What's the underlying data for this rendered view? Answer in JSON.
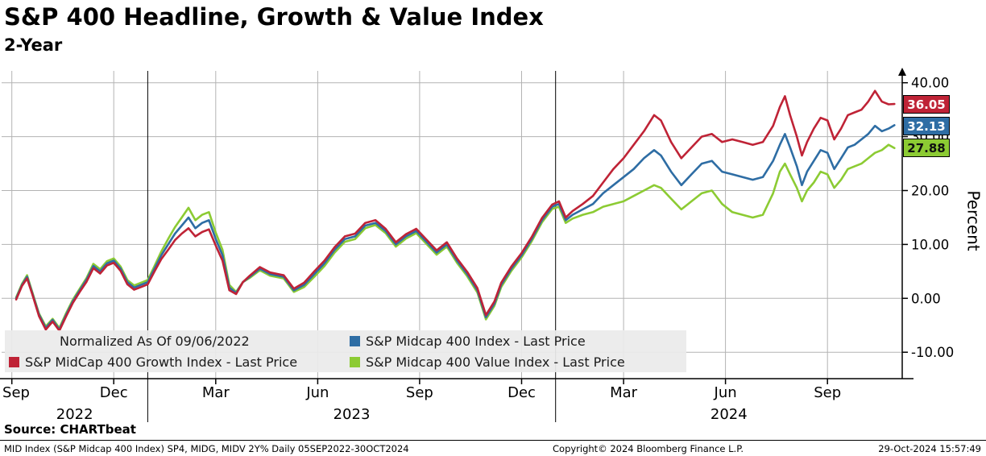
{
  "header": {
    "title": "S&P 400 Headline, Growth & Value Index",
    "subtitle": "2-Year"
  },
  "colors": {
    "red": "#bf2336",
    "blue": "#2e6da4",
    "green": "#8ccb33",
    "grid": "#b3b3b3",
    "axis": "#000000",
    "legend_bg": "#ebebeb"
  },
  "legend": {
    "normalized": "Normalized As Of 09/06/2022",
    "items": [
      {
        "key": "blue",
        "label": "S&P Midcap 400 Index - Last Price"
      },
      {
        "key": "red",
        "label": "S&P MidCap 400 Growth Index - Last Price"
      },
      {
        "key": "green",
        "label": "S&P Midcap 400 Value Index - Last Price"
      }
    ]
  },
  "axis": {
    "percent_label": "Percent"
  },
  "badges": [
    {
      "key": "red",
      "label": "36.05"
    },
    {
      "key": "blue",
      "label": "32.13"
    },
    {
      "key": "green",
      "label": "27.88"
    }
  ],
  "footer": {
    "source": "Source: CHARTbeat",
    "left": "MID Index (S&P Midcap 400 Index) SP4, MIDG, MIDV 2Y%  Daily 05SEP2022-30OCT2024",
    "copyright": "Copyright© 2024 Bloomberg Finance L.P.",
    "timestamp": "29-Oct-2024 15:57:49"
  },
  "chart_data": {
    "type": "line",
    "title": "S&P 400 Headline, Growth & Value Index",
    "subtitle": "2-Year",
    "ylabel": "Percent",
    "xlabel": "",
    "grid": true,
    "legend_position": "bottom-left-overlay",
    "x_unit": "months since 2022-09-01 (daily series 05SEP2022-30OCT2024, normalized to 0 at 09/06/2022)",
    "x_range": [
      -0.3,
      26.2
    ],
    "y_range": [
      -14.9,
      42.2
    ],
    "y_ticks": [
      {
        "v": 40,
        "label": "40.00"
      },
      {
        "v": 30,
        "label": "30.00"
      },
      {
        "v": 20,
        "label": "20.00"
      },
      {
        "v": 10,
        "label": "10.00"
      },
      {
        "v": 0,
        "label": "0.00"
      },
      {
        "v": -10,
        "label": "-10.00"
      }
    ],
    "x_ticks": [
      {
        "t": 0,
        "label": "Sep"
      },
      {
        "t": 3,
        "label": "Dec"
      },
      {
        "t": 6,
        "label": "Mar"
      },
      {
        "t": 9,
        "label": "Jun"
      },
      {
        "t": 12,
        "label": "Sep"
      },
      {
        "t": 15,
        "label": "Dec"
      },
      {
        "t": 18,
        "label": "Mar"
      },
      {
        "t": 21,
        "label": "Jun"
      },
      {
        "t": 24,
        "label": "Sep"
      }
    ],
    "year_separators": [
      4,
      16
    ],
    "year_labels": [
      {
        "t": 1.85,
        "label": "2022"
      },
      {
        "t": 10,
        "label": "2023"
      },
      {
        "t": 21.1,
        "label": "2024"
      }
    ],
    "x": [
      0.13,
      0.3,
      0.45,
      0.6,
      0.8,
      1,
      1.2,
      1.4,
      1.6,
      1.8,
      2,
      2.2,
      2.4,
      2.6,
      2.8,
      3,
      3.2,
      3.4,
      3.6,
      3.8,
      4,
      4.2,
      4.4,
      4.6,
      4.8,
      5,
      5.2,
      5.4,
      5.6,
      5.8,
      6,
      6.2,
      6.4,
      6.6,
      6.8,
      7,
      7.3,
      7.6,
      8,
      8.3,
      8.6,
      8.9,
      9.2,
      9.5,
      9.8,
      10.1,
      10.4,
      10.7,
      11,
      11.3,
      11.6,
      11.9,
      12.2,
      12.5,
      12.8,
      13.1,
      13.4,
      13.7,
      13.95,
      14.2,
      14.4,
      14.7,
      15,
      15.3,
      15.6,
      15.9,
      16.1,
      16.3,
      16.5,
      16.8,
      17.1,
      17.4,
      17.7,
      18,
      18.3,
      18.6,
      18.9,
      19.1,
      19.4,
      19.7,
      20,
      20.3,
      20.6,
      20.9,
      21.2,
      21.5,
      21.8,
      22.1,
      22.4,
      22.6,
      22.75,
      22.9,
      23.1,
      23.25,
      23.4,
      23.6,
      23.8,
      24,
      24.2,
      24.4,
      24.6,
      24.8,
      25,
      25.2,
      25.4,
      25.6,
      25.8,
      25.97
    ],
    "series": [
      {
        "name": "S&P MidCap 400 Growth Index - Last Price",
        "key": "red",
        "last_price": 36.05,
        "values": [
          -0.2,
          2.3,
          3.7,
          0.8,
          -3.3,
          -5.8,
          -4.3,
          -6,
          -3.3,
          -0.8,
          1.2,
          3.1,
          5.6,
          4.6,
          6.1,
          6.6,
          5.1,
          2.6,
          1.6,
          2.1,
          2.6,
          5,
          7.3,
          9,
          10.8,
          12,
          13,
          11.5,
          12.3,
          12.8,
          9.8,
          7,
          1.5,
          0.8,
          3,
          4.2,
          5.8,
          4.8,
          4.3,
          1.8,
          2.9,
          5,
          7,
          9.5,
          11.5,
          12,
          14,
          14.5,
          12.9,
          10.4,
          11.9,
          12.9,
          10.9,
          8.9,
          10.4,
          7.4,
          4.9,
          1.9,
          -3.1,
          -0.6,
          2.9,
          5.9,
          8.4,
          11.4,
          14.9,
          17.4,
          18,
          15,
          16.2,
          17.5,
          19,
          21.5,
          24,
          26,
          28.5,
          31,
          34,
          33,
          29,
          26,
          28,
          30,
          30.5,
          29,
          29.5,
          29,
          28.5,
          29,
          32,
          35.5,
          37.5,
          34,
          30,
          26.5,
          29,
          31.5,
          33.5,
          33,
          29.5,
          31.5,
          34,
          34.5,
          35,
          36.5,
          38.5,
          36.5,
          36,
          36.05
        ]
      },
      {
        "name": "S&P Midcap 400 Index - Last Price",
        "key": "blue",
        "last_price": 32.13,
        "values": [
          0,
          2.5,
          4,
          1,
          -3,
          -5.5,
          -4,
          -5.8,
          -3,
          -0.5,
          1.5,
          3.5,
          6,
          5,
          6.5,
          7,
          5.5,
          3,
          2,
          2.5,
          3,
          5.5,
          8,
          10,
          12,
          13.5,
          15,
          13,
          14,
          14.5,
          11,
          8,
          2,
          1,
          3,
          4,
          5.5,
          4.5,
          4,
          1.5,
          2.5,
          4.5,
          6.5,
          9,
          11,
          11.5,
          13.5,
          14,
          12.5,
          10,
          11.5,
          12.5,
          10.5,
          8.5,
          10,
          7,
          4.5,
          1.5,
          -3.5,
          -1,
          2.5,
          5.5,
          8,
          11,
          14.5,
          17,
          17.5,
          14.5,
          15.5,
          16.5,
          17.5,
          19.5,
          21,
          22.5,
          24,
          26,
          27.5,
          26.5,
          23.5,
          21,
          23,
          25,
          25.5,
          23.5,
          23,
          22.5,
          22,
          22.5,
          25.5,
          28.5,
          30.5,
          28,
          24.5,
          21,
          23.5,
          25.5,
          27.5,
          27,
          24,
          26,
          28,
          28.5,
          29.5,
          30.5,
          32,
          31,
          31.5,
          32.13
        ]
      },
      {
        "name": "S&P Midcap 400 Value Index - Last Price",
        "key": "green",
        "last_price": 27.88,
        "values": [
          0.2,
          2.7,
          4.3,
          1.2,
          -2.8,
          -5.2,
          -3.8,
          -5.5,
          -2.7,
          -0.2,
          1.8,
          3.8,
          6.4,
          5.4,
          6.9,
          7.4,
          5.9,
          3.4,
          2.4,
          2.9,
          3.4,
          6,
          8.7,
          11,
          13.2,
          15,
          16.8,
          14.5,
          15.5,
          16,
          12.2,
          9,
          2.5,
          1.2,
          3,
          3.8,
          5.2,
          4.2,
          3.7,
          1.2,
          2.1,
          4,
          6,
          8.5,
          10.5,
          11,
          13,
          13.6,
          12.1,
          9.6,
          11.1,
          12.1,
          10.1,
          8.1,
          9.6,
          6.6,
          4.1,
          1.1,
          -3.9,
          -1.4,
          2.1,
          5.1,
          7.6,
          10.6,
          14.1,
          16.6,
          17,
          14,
          14.8,
          15.5,
          16,
          17,
          17.5,
          18,
          19,
          20,
          21,
          20.5,
          18.5,
          16.5,
          18,
          19.5,
          20,
          17.5,
          16,
          15.5,
          15,
          15.5,
          19.5,
          23.5,
          25,
          23,
          20.5,
          18,
          20,
          21.5,
          23.5,
          23,
          20.5,
          22,
          24,
          24.5,
          25,
          26,
          27,
          27.5,
          28.5,
          27.88
        ]
      }
    ]
  }
}
